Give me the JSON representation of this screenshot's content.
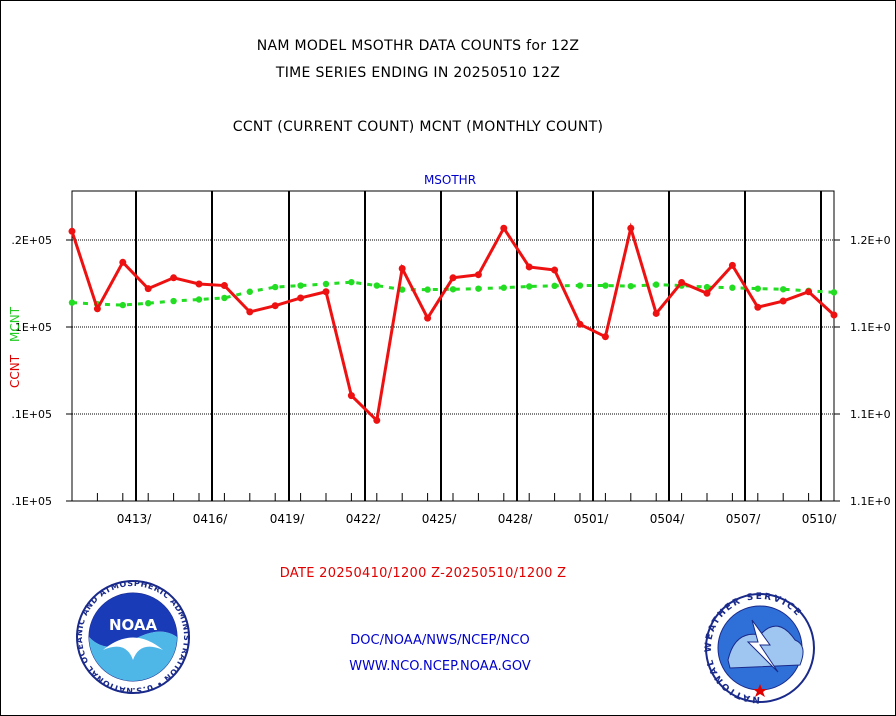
{
  "header": {
    "line1": "NAM MODEL MSOTHR DATA COUNTS for 12Z",
    "line2": "TIME SERIES ENDING IN 20250510 12Z",
    "line3": "CCNT (CURRENT COUNT) MCNT (MONTHLY COUNT)"
  },
  "footer": {
    "date_range": "DATE 20250410/1200 Z-20250510/1200 Z",
    "org_path": "DOC/NOAA/NWS/NCEP/NCO",
    "website": "WWW.NCO.NCEP.NOAA.GOV",
    "noaa_logo_text": "NOAA",
    "noaa_ring_text": "NATIONAL OCEANIC AND ATMOSPHERIC ADMINISTRATION • U.S. DEPARTMENT OF COMMERCE •",
    "nws_ring_text": "NATIONAL WEATHER SERVICE"
  },
  "colors": {
    "ccnt": "#ee1111",
    "mcnt": "#22dd22",
    "subtitle": "#0000cc",
    "grid": "#000000"
  },
  "chart_data": {
    "type": "line",
    "subtitle": "MSOTHR",
    "ylabel_left": "CCNT",
    "ylabel_left_2": "MCNT",
    "x_tick_labels": [
      "0413/",
      "0416/",
      "0419/",
      "0422/",
      "0425/",
      "0428/",
      "0501/",
      "0504/",
      "0507/",
      "0510/"
    ],
    "y_tick_labels_left": [
      ".2E+05",
      ".1E+05",
      ".1E+05",
      ".1E+05"
    ],
    "y_tick_labels_right": [
      "1.2E+0",
      "1.1E+0",
      "1.1E+0",
      "1.1E+0"
    ],
    "x_points": 31,
    "series": [
      {
        "name": "CCNT",
        "values": [
          23700,
          21200,
          22700,
          21850,
          22200,
          22000,
          21950,
          21100,
          21300,
          21550,
          21750,
          18400,
          17600,
          22500,
          20900,
          22200,
          22300,
          23800,
          22550,
          22450,
          20700,
          20300,
          23800,
          21050,
          22050,
          21700,
          22600,
          21250,
          21450,
          21750,
          21000
        ]
      },
      {
        "name": "MCNT",
        "values": [
          21400,
          21350,
          21320,
          21380,
          21450,
          21500,
          21550,
          21750,
          21900,
          21950,
          22000,
          22060,
          21950,
          21820,
          21820,
          21830,
          21850,
          21880,
          21920,
          21940,
          21950,
          21950,
          21930,
          21980,
          21950,
          21900,
          21880,
          21850,
          21830,
          21780,
          21730
        ]
      }
    ],
    "ylim": [
      15000,
      25000
    ],
    "grid": true
  }
}
